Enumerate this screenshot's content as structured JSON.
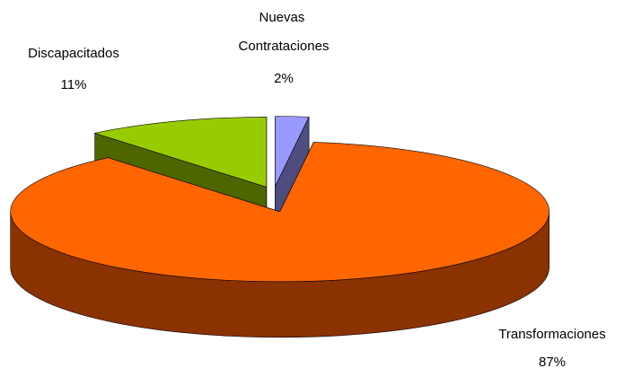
{
  "chart_data": {
    "type": "pie3d",
    "categories": [
      "Nuevas Contrataciones",
      "Transformaciones",
      "Discapacitados"
    ],
    "values": [
      2,
      87,
      11
    ],
    "value_labels": [
      "2%",
      "87%",
      "11%"
    ],
    "colors": [
      "#9999ff",
      "#ff6600",
      "#99cc00"
    ],
    "side_colors": [
      "#4d4d80",
      "#8a3200",
      "#4d6600"
    ]
  }
}
